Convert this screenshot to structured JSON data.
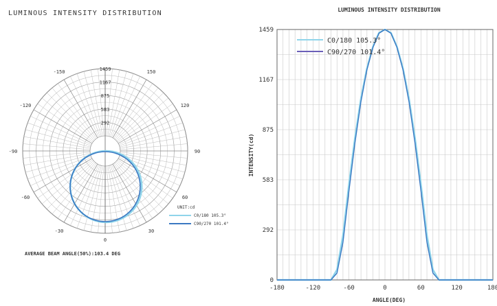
{
  "chart_data": [
    {
      "type": "polar",
      "title": "LUMINOUS INTENSITY DISTRIBUTION",
      "radial_ticks": [
        "1459",
        "1167",
        "875",
        "583",
        "292"
      ],
      "rmax": 1459,
      "angle_ticks": [
        {
          "deg": -150,
          "label": "-150"
        },
        {
          "deg": 150,
          "label": "150"
        },
        {
          "deg": -120,
          "label": "-120"
        },
        {
          "deg": 120,
          "label": "120"
        },
        {
          "deg": -90,
          "label": "-90"
        },
        {
          "deg": 90,
          "label": "90"
        },
        {
          "deg": -60,
          "label": "-60"
        },
        {
          "deg": 60,
          "label": "60"
        },
        {
          "deg": -30,
          "label": "-30"
        },
        {
          "deg": 30,
          "label": "30"
        },
        {
          "deg": 0,
          "label": "0"
        }
      ],
      "unit_label": "UNIT:cd",
      "legend": [
        {
          "label": "C0/180 105.3°",
          "color": "#8fd4ea"
        },
        {
          "label": "C90/270 101.4°",
          "color": "#3a78c2"
        }
      ],
      "footer": "AVERAGE BEAM ANGLE(50%):103.4 DEG",
      "series": [
        {
          "name": "C0/180 105.3°",
          "color": "#8fd4ea",
          "beam_angle": 105.3,
          "peak": 1459
        },
        {
          "name": "C90/270 101.4°",
          "color": "#3a78c2",
          "beam_angle": 101.4,
          "peak": 1459
        }
      ]
    },
    {
      "type": "line",
      "title": "LUMINOUS INTENSITY DISTRIBUTION",
      "xlabel": "ANGLE(DEG)",
      "ylabel": "INTENSITY(cd)",
      "xlim": [
        -180,
        180
      ],
      "ylim": [
        0,
        1459
      ],
      "xticks": [
        "-180",
        "-120",
        "-60",
        "0",
        "60",
        "120",
        "180"
      ],
      "yticks": [
        "0",
        "292",
        "583",
        "875",
        "1167",
        "1459"
      ],
      "grid": true,
      "legend_position": "top-left",
      "series": [
        {
          "name": "C0/180 105.3°",
          "color": "#8fd4ea",
          "x": [
            -90,
            -80,
            -70,
            -60,
            -50,
            -40,
            -30,
            -20,
            -10,
            0,
            10,
            20,
            30,
            40,
            50,
            60,
            70,
            80,
            90
          ],
          "y": [
            0,
            60,
            260,
            560,
            830,
            1060,
            1235,
            1360,
            1440,
            1459,
            1440,
            1360,
            1235,
            1060,
            830,
            560,
            260,
            60,
            0
          ]
        },
        {
          "name": "C90/270 101.4°",
          "color": "#3a78c2",
          "x": [
            -90,
            -80,
            -70,
            -60,
            -50,
            -40,
            -30,
            -20,
            -10,
            0,
            10,
            20,
            30,
            40,
            50,
            60,
            70,
            80,
            90
          ],
          "y": [
            0,
            40,
            220,
            520,
            800,
            1040,
            1225,
            1355,
            1437,
            1459,
            1437,
            1355,
            1225,
            1040,
            800,
            520,
            220,
            40,
            0
          ]
        }
      ]
    }
  ]
}
